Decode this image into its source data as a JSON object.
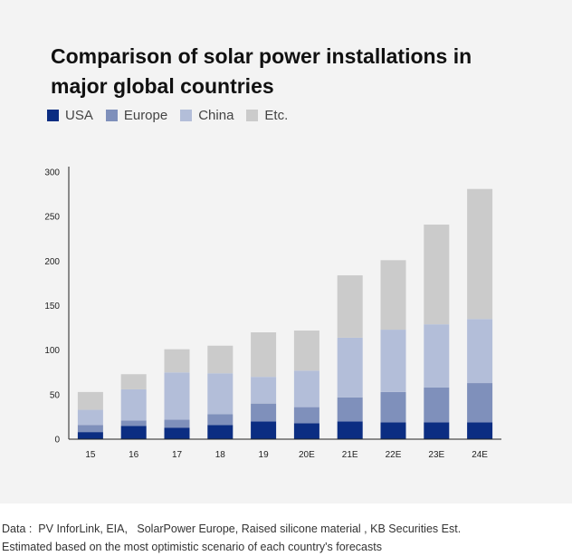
{
  "chart_data": {
    "type": "bar",
    "stacked": true,
    "title": "Comparison of solar power installations in major global countries",
    "categories": [
      "15",
      "16",
      "17",
      "18",
      "19",
      "20E",
      "21E",
      "22E",
      "23E",
      "24E"
    ],
    "series": [
      {
        "name": "USA",
        "color": "#0b2d82",
        "values": [
          8,
          15,
          13,
          16,
          20,
          18,
          20,
          19,
          19,
          19
        ]
      },
      {
        "name": "Europe",
        "color": "#7f90bb",
        "values": [
          8,
          6,
          9,
          12,
          20,
          18,
          27,
          34,
          39,
          44
        ]
      },
      {
        "name": "China",
        "color": "#b3bed9",
        "values": [
          17,
          35,
          53,
          46,
          30,
          41,
          67,
          70,
          71,
          72
        ]
      },
      {
        "name": "Etc.",
        "color": "#cbcbcb",
        "values": [
          20,
          17,
          26,
          31,
          50,
          45,
          70,
          78,
          112,
          146
        ]
      }
    ],
    "yticks": [
      0,
      50,
      100,
      150,
      200,
      250,
      300
    ],
    "ylim": [
      0,
      300
    ],
    "xlabel": "",
    "ylabel": "",
    "legend_position": "top-left",
    "grid": false
  },
  "source": {
    "line1": "Data :  PV InforLink, EIA,   SolarPower Europe, Raised silicone material , KB Securities Est.",
    "line2": "Estimated based on the most optimistic scenario of each country's forecasts"
  }
}
